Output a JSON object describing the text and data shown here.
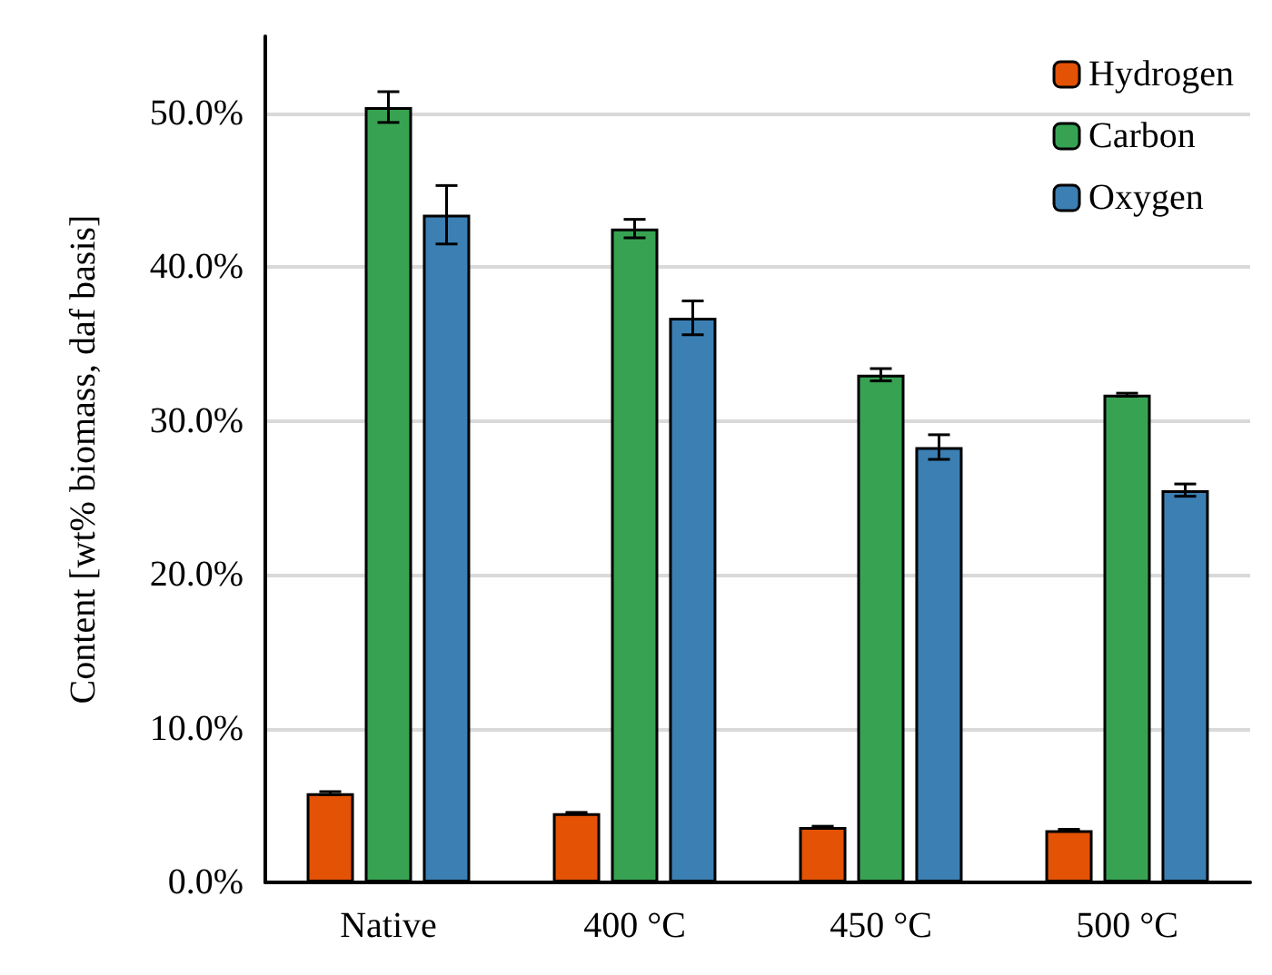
{
  "chart_data": {
    "type": "bar",
    "ylabel": "Content [wt% biomass, daf basis]",
    "categories": [
      "Native",
      "400 °C",
      "450 °C",
      "500 °C"
    ],
    "series": [
      {
        "name": "Hydrogen",
        "color": "#e35205",
        "values": [
          5.8,
          4.5,
          3.6,
          3.4
        ],
        "errors": [
          0.1,
          0.05,
          0.05,
          0.05
        ]
      },
      {
        "name": "Carbon",
        "color": "#37a352",
        "values": [
          50.4,
          42.5,
          33.0,
          31.7
        ],
        "errors": [
          1.0,
          0.6,
          0.4,
          0.1
        ]
      },
      {
        "name": "Oxygen",
        "color": "#3b7fb3",
        "values": [
          43.4,
          36.7,
          28.3,
          25.5
        ],
        "errors": [
          1.9,
          1.1,
          0.8,
          0.4
        ]
      }
    ],
    "ylim": [
      0,
      55
    ],
    "yticks": [
      {
        "value": 0,
        "label": "0.0%"
      },
      {
        "value": 10,
        "label": "10.0%"
      },
      {
        "value": 20,
        "label": "20.0%"
      },
      {
        "value": 30,
        "label": "30.0%"
      },
      {
        "value": 40,
        "label": "40.0%"
      },
      {
        "value": 50,
        "label": "50.0%"
      }
    ],
    "grid": "y",
    "legend": "top right"
  }
}
